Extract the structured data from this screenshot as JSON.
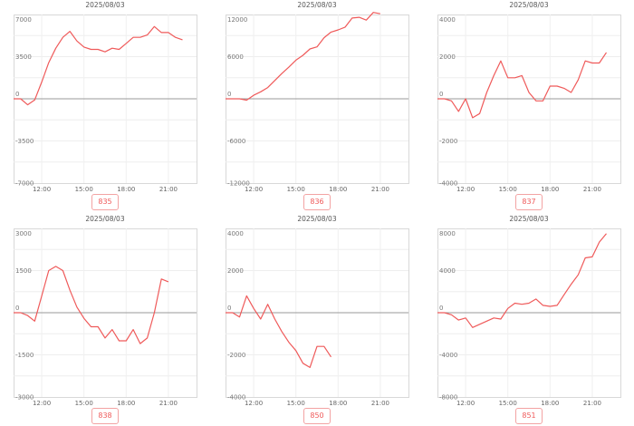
{
  "colors": {
    "line": "#ef5a5a",
    "badge_border": "#f3a3a3",
    "zero_line": "#999999"
  },
  "chart_data": [
    {
      "type": "line",
      "title": "2025/08/03",
      "label": "835",
      "y_ticks": [
        "7000",
        "3500",
        "0",
        "-3500",
        "-7000"
      ],
      "x_ticks": [
        "12:00",
        "15:00",
        "18:00",
        "21:00"
      ],
      "ylim": [
        -7000,
        7000
      ],
      "x": [
        "10:00",
        "10:30",
        "11:00",
        "11:30",
        "12:00",
        "12:30",
        "13:00",
        "13:30",
        "14:00",
        "14:30",
        "15:00",
        "15:30",
        "16:00",
        "16:30",
        "17:00",
        "17:30",
        "18:00",
        "18:30",
        "19:00",
        "19:30",
        "20:00",
        "20:30",
        "21:00",
        "21:30",
        "22:00"
      ],
      "values": [
        0,
        0,
        -500,
        -100,
        1400,
        3000,
        4200,
        5100,
        5600,
        4800,
        4300,
        4100,
        4100,
        3900,
        4200,
        4100,
        4600,
        5100,
        5100,
        5300,
        6000,
        5500,
        5500,
        5100,
        4900
      ]
    },
    {
      "type": "line",
      "title": "2025/08/03",
      "label": "836",
      "y_ticks": [
        "12000",
        "6000",
        "0",
        "-6000",
        "-12000"
      ],
      "x_ticks": [
        "12:00",
        "15:00",
        "18:00",
        "21:00"
      ],
      "ylim": [
        -12000,
        12000
      ],
      "x": [
        "10:00",
        "10:30",
        "11:00",
        "11:30",
        "12:00",
        "12:30",
        "13:00",
        "13:30",
        "14:00",
        "14:30",
        "15:00",
        "15:30",
        "16:00",
        "16:30",
        "17:00",
        "17:30",
        "18:00",
        "18:30",
        "19:00",
        "19:30",
        "20:00",
        "20:30",
        "21:00"
      ],
      "values": [
        0,
        0,
        0,
        -200,
        500,
        1000,
        1600,
        2600,
        3600,
        4500,
        5500,
        6200,
        7100,
        7400,
        8700,
        9500,
        9800,
        10200,
        11500,
        11600,
        11200,
        12300,
        12100
      ]
    },
    {
      "type": "line",
      "title": "2025/08/03",
      "label": "837",
      "y_ticks": [
        "4000",
        "2000",
        "0",
        "-2000",
        "-4000"
      ],
      "x_ticks": [
        "12:00",
        "15:00",
        "18:00",
        "21:00"
      ],
      "ylim": [
        -4000,
        4000
      ],
      "x": [
        "10:00",
        "10:30",
        "11:00",
        "11:30",
        "12:00",
        "12:30",
        "13:00",
        "13:30",
        "14:00",
        "14:30",
        "15:00",
        "15:30",
        "16:00",
        "16:30",
        "17:00",
        "17:30",
        "18:00",
        "18:30",
        "19:00",
        "19:30",
        "20:00",
        "20:30",
        "21:00",
        "21:30",
        "22:00"
      ],
      "values": [
        0,
        0,
        -100,
        -600,
        0,
        -900,
        -700,
        300,
        1100,
        1800,
        1000,
        1000,
        1100,
        300,
        -100,
        -100,
        600,
        600,
        500,
        300,
        900,
        1800,
        1700,
        1700,
        2200
      ]
    },
    {
      "type": "line",
      "title": "2025/08/03",
      "label": "838",
      "y_ticks": [
        "3000",
        "1500",
        "0",
        "-1500",
        "-3000"
      ],
      "x_ticks": [
        "12:00",
        "15:00",
        "18:00",
        "21:00"
      ],
      "ylim": [
        -3000,
        3000
      ],
      "x": [
        "10:00",
        "10:30",
        "11:00",
        "11:30",
        "12:00",
        "12:30",
        "13:00",
        "13:30",
        "14:00",
        "14:30",
        "15:00",
        "15:30",
        "16:00",
        "16:30",
        "17:00",
        "17:30",
        "18:00",
        "18:30",
        "19:00",
        "19:30",
        "20:00",
        "20:30",
        "21:00"
      ],
      "values": [
        0,
        0,
        -100,
        -300,
        600,
        1500,
        1650,
        1500,
        800,
        200,
        -200,
        -500,
        -500,
        -900,
        -600,
        -1000,
        -1000,
        -600,
        -1100,
        -900,
        0,
        1200,
        1100
      ]
    },
    {
      "type": "line",
      "title": "2025/08/03",
      "label": "850",
      "y_ticks": [
        "4000",
        "2000",
        "0",
        "-2000",
        "-4000"
      ],
      "x_ticks": [
        "12:00",
        "15:00",
        "18:00",
        "21:00"
      ],
      "ylim": [
        -4000,
        4000
      ],
      "x": [
        "10:00",
        "10:30",
        "11:00",
        "11:30",
        "12:00",
        "12:30",
        "13:00",
        "13:30",
        "14:00",
        "14:30",
        "15:00",
        "15:30",
        "16:00",
        "16:30",
        "17:00",
        "17:30"
      ],
      "values": [
        0,
        0,
        -200,
        800,
        200,
        -300,
        400,
        -300,
        -900,
        -1400,
        -1800,
        -2400,
        -2600,
        -1600,
        -1600,
        -2100
      ]
    },
    {
      "type": "line",
      "title": "2025/08/03",
      "label": "851",
      "y_ticks": [
        "8000",
        "4000",
        "0",
        "-4000",
        "-8000"
      ],
      "x_ticks": [
        "12:00",
        "15:00",
        "18:00",
        "21:00"
      ],
      "ylim": [
        -8000,
        8000
      ],
      "x": [
        "10:00",
        "10:30",
        "11:00",
        "11:30",
        "12:00",
        "12:30",
        "13:00",
        "13:30",
        "14:00",
        "14:30",
        "15:00",
        "15:30",
        "16:00",
        "16:30",
        "17:00",
        "17:30",
        "18:00",
        "18:30",
        "19:00",
        "19:30",
        "20:00",
        "20:30",
        "21:00",
        "21:30",
        "22:00"
      ],
      "values": [
        0,
        0,
        -200,
        -700,
        -500,
        -1400,
        -1100,
        -800,
        -500,
        -600,
        400,
        900,
        800,
        900,
        1300,
        700,
        600,
        700,
        1700,
        2700,
        3600,
        5200,
        5300,
        6700,
        7500
      ]
    }
  ]
}
